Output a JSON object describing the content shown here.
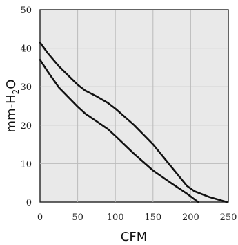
{
  "chart_data": {
    "type": "line",
    "xlabel": "CFM",
    "ylabel_main": "mm-H",
    "ylabel_sub": "2",
    "ylabel_end": "O",
    "xlim": [
      0,
      250
    ],
    "ylim": [
      0,
      50
    ],
    "x_ticks": [
      0,
      50,
      100,
      150,
      200,
      250
    ],
    "y_ticks": [
      0,
      10,
      20,
      30,
      40,
      50
    ],
    "grid": true,
    "series": [
      {
        "points": [
          [
            0,
            41.5
          ],
          [
            10,
            38.8
          ],
          [
            25,
            35.3
          ],
          [
            50,
            30.5
          ],
          [
            60,
            29.0
          ],
          [
            75,
            27.5
          ],
          [
            90,
            25.8
          ],
          [
            100,
            24.3
          ],
          [
            125,
            20.0
          ],
          [
            150,
            15.0
          ],
          [
            175,
            9.0
          ],
          [
            195,
            4.2
          ],
          [
            205,
            2.8
          ],
          [
            225,
            1.3
          ],
          [
            248,
            0
          ]
        ]
      },
      {
        "points": [
          [
            0,
            37.0
          ],
          [
            10,
            34.0
          ],
          [
            25,
            29.8
          ],
          [
            50,
            24.8
          ],
          [
            60,
            23.0
          ],
          [
            75,
            21.0
          ],
          [
            90,
            19.0
          ],
          [
            100,
            17.2
          ],
          [
            125,
            12.5
          ],
          [
            150,
            8.2
          ],
          [
            175,
            4.8
          ],
          [
            195,
            2.2
          ],
          [
            210,
            0
          ]
        ]
      }
    ]
  }
}
